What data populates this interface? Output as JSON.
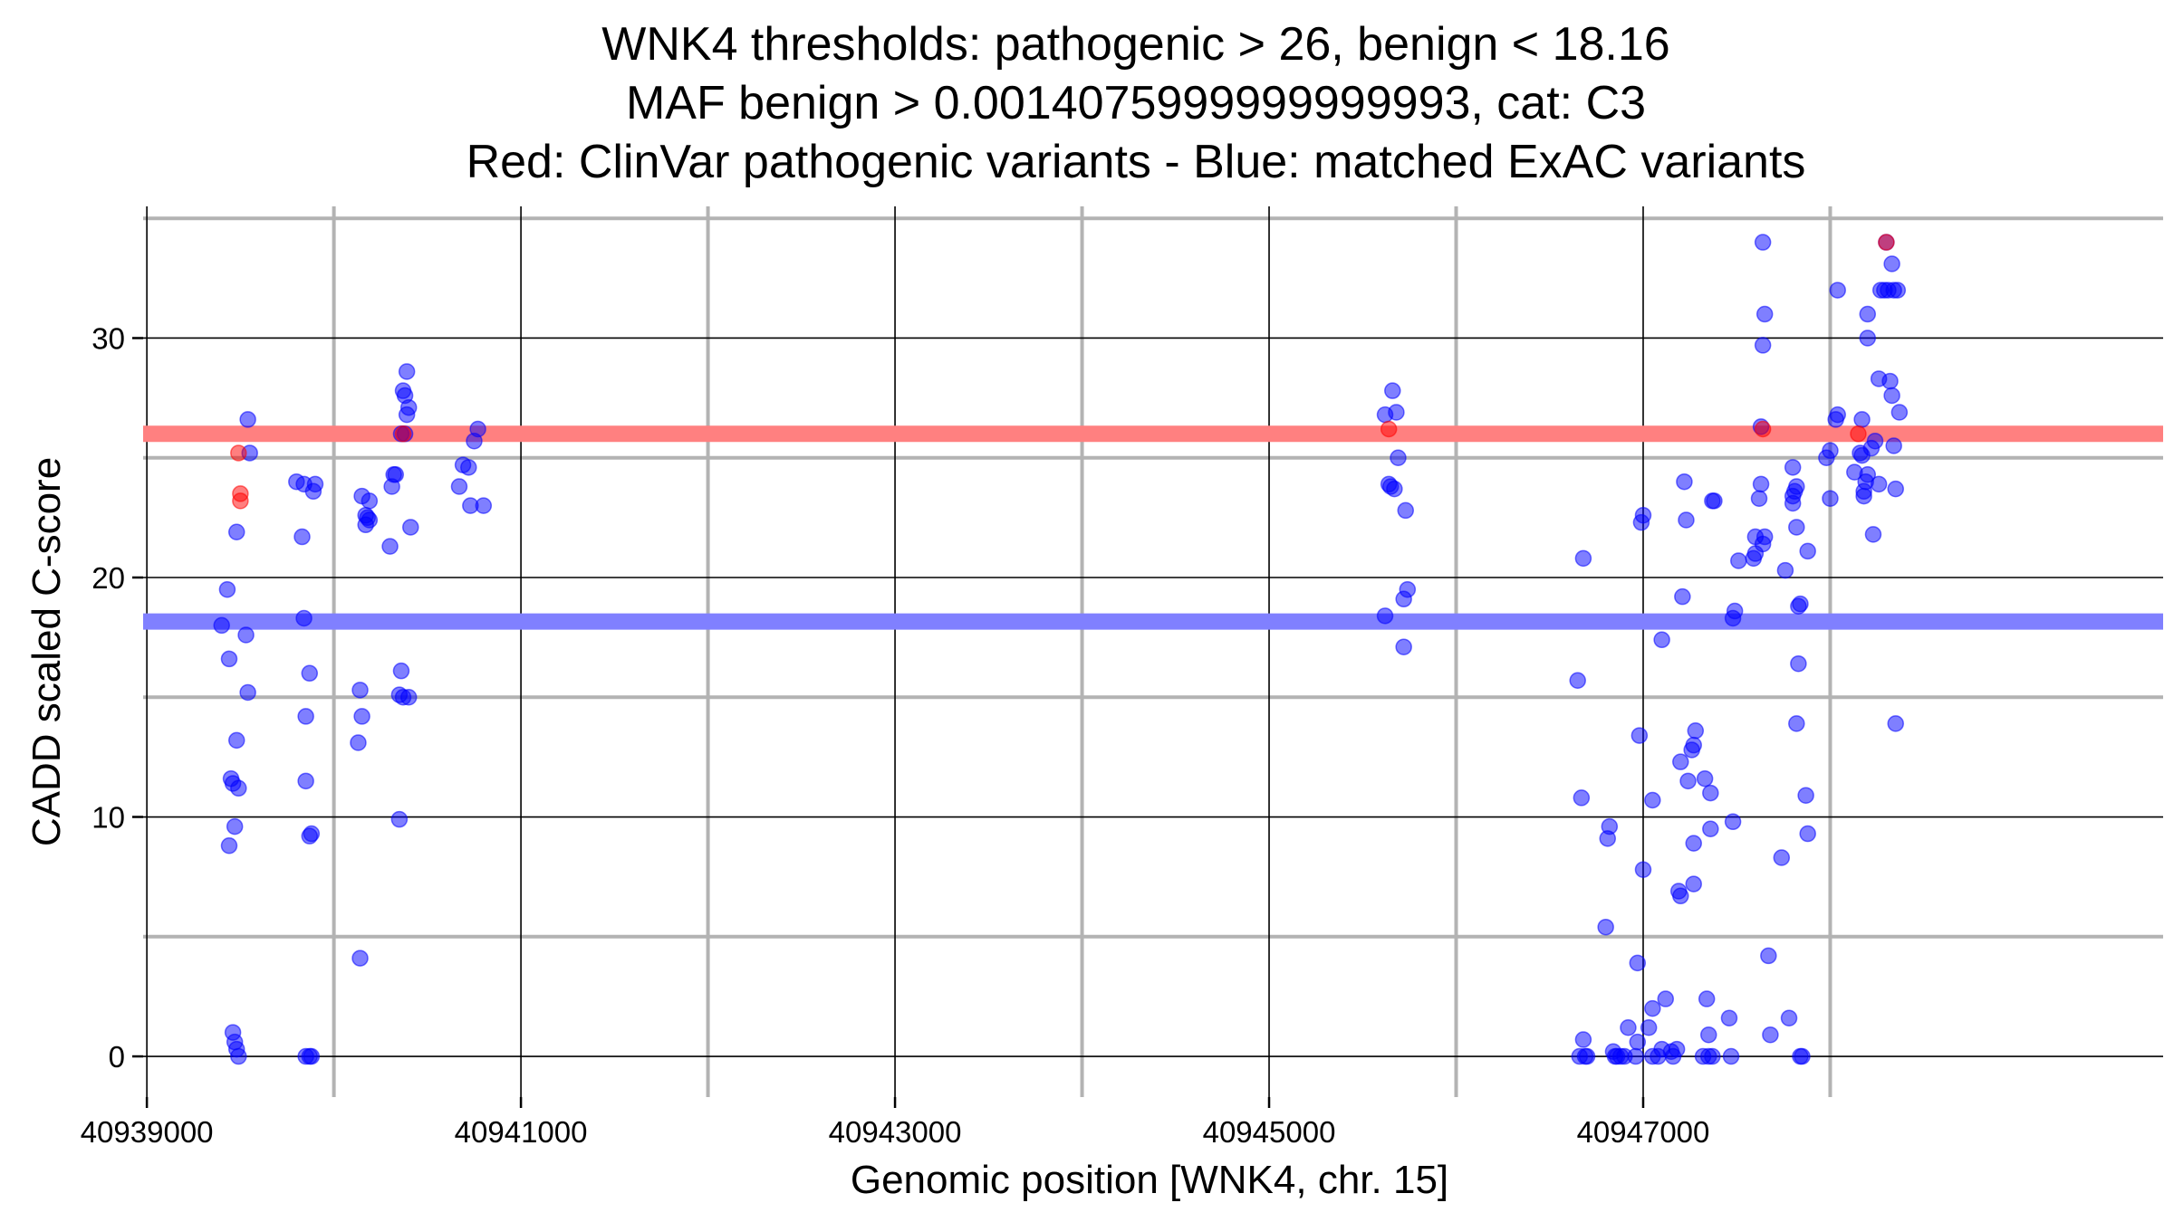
{
  "chart_data": {
    "type": "scatter",
    "title_lines": [
      "WNK4 thresholds: pathogenic > 26, benign < 18.16",
      "MAF benign > 0.0014075999999999993, cat: C3",
      "Red: ClinVar pathogenic variants - Blue: matched ExAC variants"
    ],
    "xlabel": "Genomic position [WNK4, chr. 15]",
    "ylabel": "CADD scaled C-score",
    "xlim": [
      40938980,
      40949780
    ],
    "ylim": [
      -1.7,
      35.5
    ],
    "x_ticks": [
      40939000,
      40941000,
      40943000,
      40945000,
      40947000
    ],
    "x_tick_labels": [
      "40939000",
      "40941000",
      "40943000",
      "40945000",
      "40947000"
    ],
    "x_minor_grid": [
      40940000,
      40942000,
      40944000,
      40946000,
      40948000
    ],
    "y_ticks": [
      0,
      10,
      20,
      30
    ],
    "y_tick_labels": [
      "0",
      "10",
      "20",
      "30"
    ],
    "y_minor_grid": [
      5,
      15,
      25,
      35
    ],
    "thresholds": [
      {
        "name": "pathogenic",
        "value": 26,
        "color": "#ff8080"
      },
      {
        "name": "benign",
        "value": 18.16,
        "color": "#8080ff"
      }
    ],
    "series": [
      {
        "name": "ClinVar pathogenic variants",
        "color": "#ff0000",
        "points": [
          [
            40939490,
            25.2
          ],
          [
            40939500,
            23.5
          ],
          [
            40939500,
            23.2
          ],
          [
            40940370,
            26.0
          ],
          [
            40945640,
            26.2
          ],
          [
            40947640,
            26.2
          ],
          [
            40948300,
            34.0
          ],
          [
            40948150,
            26.0
          ]
        ]
      },
      {
        "name": "matched ExAC variants",
        "color": "#0000ff",
        "points": [
          [
            40939400,
            18.0
          ],
          [
            40939430,
            19.5
          ],
          [
            40939440,
            16.6
          ],
          [
            40939450,
            11.6
          ],
          [
            40939460,
            11.4
          ],
          [
            40939470,
            9.6
          ],
          [
            40939440,
            8.8
          ],
          [
            40939490,
            11.2
          ],
          [
            40939480,
            13.2
          ],
          [
            40939480,
            21.9
          ],
          [
            40939540,
            26.6
          ],
          [
            40939550,
            25.2
          ],
          [
            40939530,
            17.6
          ],
          [
            40939540,
            15.2
          ],
          [
            40939460,
            1.0
          ],
          [
            40939470,
            0.6
          ],
          [
            40939480,
            0.3
          ],
          [
            40939490,
            0.0
          ],
          [
            40939800,
            24.0
          ],
          [
            40939830,
            21.7
          ],
          [
            40939840,
            23.9
          ],
          [
            40939840,
            18.3
          ],
          [
            40939850,
            14.2
          ],
          [
            40939850,
            11.5
          ],
          [
            40939870,
            16.0
          ],
          [
            40939870,
            9.2
          ],
          [
            40939880,
            9.3
          ],
          [
            40939850,
            0.0
          ],
          [
            40939870,
            0.0
          ],
          [
            40939880,
            0.0
          ],
          [
            40939890,
            23.6
          ],
          [
            40939900,
            23.9
          ],
          [
            40940150,
            23.4
          ],
          [
            40940170,
            22.6
          ],
          [
            40940180,
            22.5
          ],
          [
            40940190,
            23.2
          ],
          [
            40940170,
            22.2
          ],
          [
            40940190,
            22.4
          ],
          [
            40940140,
            15.3
          ],
          [
            40940150,
            14.2
          ],
          [
            40940130,
            13.1
          ],
          [
            40940140,
            4.1
          ],
          [
            40940300,
            21.3
          ],
          [
            40940310,
            23.8
          ],
          [
            40940320,
            24.3
          ],
          [
            40940330,
            24.3
          ],
          [
            40940350,
            15.1
          ],
          [
            40940360,
            16.1
          ],
          [
            40940370,
            15.0
          ],
          [
            40940400,
            15.0
          ],
          [
            40940350,
            9.9
          ],
          [
            40940370,
            27.8
          ],
          [
            40940380,
            27.6
          ],
          [
            40940390,
            28.6
          ],
          [
            40940400,
            27.1
          ],
          [
            40940390,
            26.8
          ],
          [
            40940380,
            26.0
          ],
          [
            40940410,
            22.1
          ],
          [
            40940360,
            26.0
          ],
          [
            40940670,
            23.8
          ],
          [
            40940690,
            24.7
          ],
          [
            40940720,
            24.6
          ],
          [
            40940730,
            23.0
          ],
          [
            40940750,
            25.7
          ],
          [
            40940770,
            26.2
          ],
          [
            40940800,
            23.0
          ],
          [
            40945620,
            26.8
          ],
          [
            40945660,
            27.8
          ],
          [
            40945680,
            26.9
          ],
          [
            40945690,
            25.0
          ],
          [
            40945640,
            23.9
          ],
          [
            40945650,
            23.8
          ],
          [
            40945670,
            23.7
          ],
          [
            40945730,
            22.8
          ],
          [
            40945720,
            19.1
          ],
          [
            40945740,
            19.5
          ],
          [
            40945620,
            18.4
          ],
          [
            40945720,
            17.1
          ],
          [
            40946650,
            15.7
          ],
          [
            40946680,
            20.8
          ],
          [
            40946670,
            10.8
          ],
          [
            40946680,
            0.7
          ],
          [
            40946660,
            0.0
          ],
          [
            40946690,
            0.0
          ],
          [
            40946700,
            0.0
          ],
          [
            40946810,
            9.1
          ],
          [
            40946820,
            9.6
          ],
          [
            40946800,
            5.4
          ],
          [
            40946840,
            0.2
          ],
          [
            40946850,
            0.0
          ],
          [
            40946860,
            0.0
          ],
          [
            40946920,
            1.2
          ],
          [
            40946880,
            0.0
          ],
          [
            40946900,
            0.0
          ],
          [
            40946960,
            0.0
          ],
          [
            40946970,
            0.6
          ],
          [
            40946970,
            3.9
          ],
          [
            40946980,
            13.4
          ],
          [
            40946990,
            22.3
          ],
          [
            40947000,
            22.6
          ],
          [
            40947000,
            7.8
          ],
          [
            40947030,
            1.2
          ],
          [
            40947050,
            2.0
          ],
          [
            40947050,
            10.7
          ],
          [
            40947050,
            0.0
          ],
          [
            40947080,
            0.0
          ],
          [
            40947100,
            17.4
          ],
          [
            40947100,
            0.3
          ],
          [
            40947120,
            2.4
          ],
          [
            40947150,
            0.2
          ],
          [
            40947160,
            0.0
          ],
          [
            40947180,
            0.3
          ],
          [
            40947190,
            6.9
          ],
          [
            40947200,
            6.7
          ],
          [
            40947200,
            12.3
          ],
          [
            40947210,
            19.2
          ],
          [
            40947220,
            24.0
          ],
          [
            40947230,
            22.4
          ],
          [
            40947240,
            11.5
          ],
          [
            40947260,
            12.8
          ],
          [
            40947270,
            13.0
          ],
          [
            40947280,
            13.6
          ],
          [
            40947270,
            8.9
          ],
          [
            40947270,
            7.2
          ],
          [
            40947330,
            11.6
          ],
          [
            40947340,
            2.4
          ],
          [
            40947350,
            0.9
          ],
          [
            40947320,
            0.0
          ],
          [
            40947350,
            0.0
          ],
          [
            40947370,
            0.0
          ],
          [
            40947360,
            9.5
          ],
          [
            40947360,
            11.0
          ],
          [
            40947370,
            23.2
          ],
          [
            40947380,
            23.2
          ],
          [
            40947460,
            1.6
          ],
          [
            40947470,
            0.0
          ],
          [
            40947480,
            9.8
          ],
          [
            40947480,
            18.3
          ],
          [
            40947490,
            18.6
          ],
          [
            40947510,
            20.7
          ],
          [
            40947590,
            20.8
          ],
          [
            40947600,
            21.0
          ],
          [
            40947600,
            21.7
          ],
          [
            40947620,
            23.3
          ],
          [
            40947630,
            23.9
          ],
          [
            40947640,
            21.4
          ],
          [
            40947650,
            21.7
          ],
          [
            40947670,
            4.2
          ],
          [
            40947680,
            0.9
          ],
          [
            40947640,
            29.7
          ],
          [
            40947650,
            31.0
          ],
          [
            40947640,
            34.0
          ],
          [
            40947630,
            26.3
          ],
          [
            40947740,
            8.3
          ],
          [
            40947760,
            20.3
          ],
          [
            40947780,
            1.6
          ],
          [
            40947800,
            23.1
          ],
          [
            40947800,
            23.4
          ],
          [
            40947810,
            23.6
          ],
          [
            40947820,
            23.8
          ],
          [
            40947800,
            24.6
          ],
          [
            40947820,
            13.9
          ],
          [
            40947830,
            16.4
          ],
          [
            40947820,
            22.1
          ],
          [
            40947830,
            18.8
          ],
          [
            40947840,
            18.9
          ],
          [
            40947840,
            0.0
          ],
          [
            40947850,
            0.0
          ],
          [
            40947870,
            10.9
          ],
          [
            40947880,
            9.3
          ],
          [
            40947880,
            21.1
          ],
          [
            40947980,
            25.0
          ],
          [
            40948000,
            25.3
          ],
          [
            40948000,
            23.3
          ],
          [
            40948030,
            26.6
          ],
          [
            40948040,
            26.8
          ],
          [
            40948040,
            32.0
          ],
          [
            40948130,
            24.4
          ],
          [
            40948160,
            25.2
          ],
          [
            40948170,
            26.6
          ],
          [
            40948170,
            25.1
          ],
          [
            40948180,
            23.6
          ],
          [
            40948180,
            23.4
          ],
          [
            40948190,
            24.0
          ],
          [
            40948200,
            24.3
          ],
          [
            40948200,
            31.0
          ],
          [
            40948200,
            30.0
          ],
          [
            40948220,
            25.4
          ],
          [
            40948230,
            21.8
          ],
          [
            40948240,
            25.7
          ],
          [
            40948260,
            23.9
          ],
          [
            40948260,
            28.3
          ],
          [
            40948270,
            32.0
          ],
          [
            40948290,
            32.0
          ],
          [
            40948300,
            34.0
          ],
          [
            40948310,
            32.0
          ],
          [
            40948320,
            28.2
          ],
          [
            40948330,
            33.1
          ],
          [
            40948330,
            27.6
          ],
          [
            40948340,
            32.0
          ],
          [
            40948340,
            25.5
          ],
          [
            40948350,
            23.7
          ],
          [
            40948350,
            13.9
          ],
          [
            40948360,
            32.0
          ],
          [
            40948370,
            26.9
          ]
        ]
      }
    ]
  }
}
